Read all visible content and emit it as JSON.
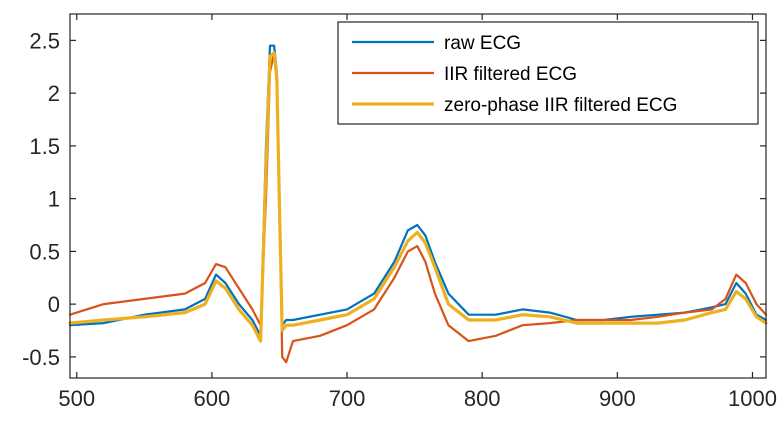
{
  "chart_data": {
    "type": "line",
    "title": "",
    "xlabel": "",
    "ylabel": "",
    "xlim": [
      495,
      1010
    ],
    "ylim": [
      -0.7,
      2.75
    ],
    "xticks": [
      500,
      600,
      700,
      800,
      900,
      1000
    ],
    "yticks": [
      -0.5,
      0,
      0.5,
      1,
      1.5,
      2,
      2.5
    ],
    "xtick_labels": [
      "500",
      "600",
      "700",
      "800",
      "900",
      "1000"
    ],
    "ytick_labels": [
      "-0.5",
      "0",
      "0.5",
      "1",
      "1.5",
      "2",
      "2.5"
    ],
    "grid": false,
    "legend_position": "top-right",
    "series": [
      {
        "name": "raw ECG",
        "color": "#0072BD",
        "x": [
          495,
          520,
          550,
          580,
          595,
          603,
          610,
          620,
          630,
          636,
          640,
          643,
          646,
          648,
          650,
          652,
          655,
          660,
          680,
          700,
          720,
          735,
          745,
          752,
          758,
          765,
          775,
          790,
          810,
          830,
          850,
          870,
          890,
          910,
          930,
          950,
          970,
          980,
          988,
          995,
          1003,
          1010
        ],
        "y": [
          -0.2,
          -0.18,
          -0.1,
          -0.05,
          0.05,
          0.28,
          0.2,
          0.0,
          -0.15,
          -0.3,
          1.5,
          2.45,
          2.45,
          2.2,
          0.8,
          -0.2,
          -0.15,
          -0.15,
          -0.1,
          -0.05,
          0.1,
          0.4,
          0.7,
          0.75,
          0.65,
          0.4,
          0.1,
          -0.1,
          -0.1,
          -0.05,
          -0.08,
          -0.15,
          -0.15,
          -0.12,
          -0.1,
          -0.08,
          -0.03,
          0.0,
          0.2,
          0.1,
          -0.1,
          -0.15
        ]
      },
      {
        "name": "IIR filtered ECG",
        "color": "#D95319",
        "x": [
          495,
          520,
          550,
          580,
          595,
          603,
          610,
          620,
          630,
          636,
          640,
          643,
          646,
          648,
          650,
          652,
          655,
          660,
          680,
          700,
          720,
          735,
          745,
          752,
          758,
          765,
          775,
          790,
          810,
          830,
          850,
          870,
          890,
          910,
          930,
          950,
          970,
          980,
          988,
          995,
          1003,
          1010
        ],
        "y": [
          -0.1,
          0.0,
          0.05,
          0.1,
          0.2,
          0.38,
          0.35,
          0.15,
          -0.05,
          -0.2,
          1.0,
          2.2,
          2.38,
          2.1,
          1.0,
          -0.5,
          -0.55,
          -0.35,
          -0.3,
          -0.2,
          -0.05,
          0.25,
          0.5,
          0.55,
          0.4,
          0.1,
          -0.2,
          -0.35,
          -0.3,
          -0.2,
          -0.18,
          -0.15,
          -0.15,
          -0.15,
          -0.12,
          -0.08,
          -0.05,
          0.05,
          0.28,
          0.2,
          0.0,
          -0.1
        ]
      },
      {
        "name": "zero-phase IIR filtered ECG",
        "color": "#EDB120",
        "x": [
          495,
          520,
          550,
          580,
          595,
          603,
          610,
          620,
          630,
          636,
          640,
          643,
          646,
          648,
          650,
          652,
          655,
          660,
          680,
          700,
          720,
          735,
          745,
          752,
          758,
          765,
          775,
          790,
          810,
          830,
          850,
          870,
          890,
          910,
          930,
          950,
          970,
          980,
          988,
          995,
          1003,
          1010
        ],
        "y": [
          -0.18,
          -0.15,
          -0.12,
          -0.08,
          0.0,
          0.22,
          0.15,
          -0.05,
          -0.2,
          -0.35,
          1.3,
          2.35,
          2.38,
          2.15,
          0.9,
          -0.25,
          -0.2,
          -0.2,
          -0.15,
          -0.1,
          0.05,
          0.35,
          0.6,
          0.68,
          0.58,
          0.35,
          0.0,
          -0.15,
          -0.15,
          -0.1,
          -0.12,
          -0.18,
          -0.18,
          -0.18,
          -0.18,
          -0.15,
          -0.08,
          -0.05,
          0.12,
          0.05,
          -0.12,
          -0.18
        ]
      }
    ]
  }
}
